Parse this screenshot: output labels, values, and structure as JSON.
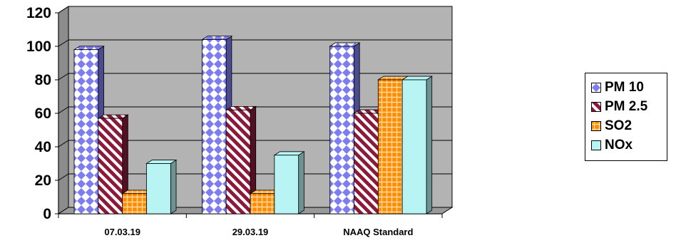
{
  "chart_data": {
    "type": "bar",
    "categories": [
      "07.03.19",
      "29.03.19",
      "NAAQ Standard"
    ],
    "series": [
      {
        "name": "PM 10",
        "values": [
          98,
          104,
          100
        ],
        "color": "#7d7df0",
        "pattern": "diamond"
      },
      {
        "name": "PM 2.5",
        "values": [
          57,
          62,
          60
        ],
        "color": "#8b1a3a",
        "pattern": "diagonal"
      },
      {
        "name": "SO2",
        "values": [
          12,
          12,
          80
        ],
        "color": "#ff8c00",
        "pattern": "grid"
      },
      {
        "name": "NOx",
        "values": [
          30,
          35,
          80
        ],
        "color": "#b8f4f4",
        "pattern": "solid"
      }
    ],
    "yticks": [
      0,
      20,
      40,
      60,
      80,
      100,
      120
    ],
    "ylim": [
      0,
      120
    ],
    "title": "",
    "xlabel": "",
    "ylabel": "",
    "grid": true,
    "legend_position": "right",
    "plot_background": "#b3b3b3",
    "three_d": true
  }
}
